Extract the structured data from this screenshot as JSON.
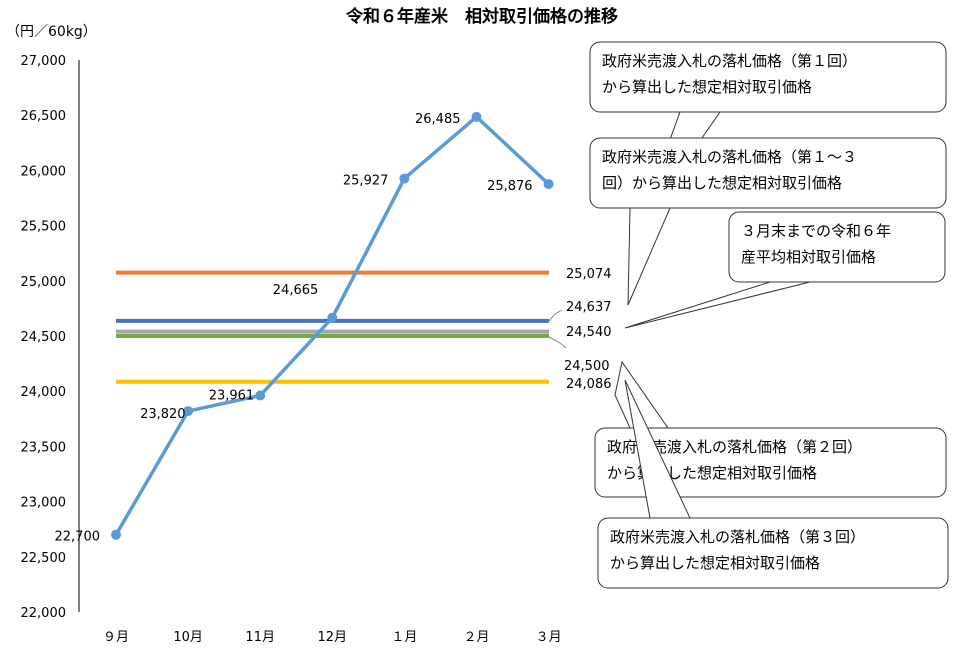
{
  "chart_data": {
    "type": "line",
    "title": "令和６年産米　相対取引価格の推移",
    "unit_label": "（円／60kg）",
    "categories": [
      "９月",
      "10月",
      "11月",
      "12月",
      "１月",
      "２月",
      "３月"
    ],
    "ylim": [
      22000,
      27000
    ],
    "yticks": [
      22000,
      22500,
      23000,
      23500,
      24000,
      24500,
      25000,
      25500,
      26000,
      26500,
      27000
    ],
    "ytick_labels": [
      "22,000",
      "22,500",
      "23,000",
      "23,500",
      "24,000",
      "24,500",
      "25,000",
      "25,500",
      "26,000",
      "26,500",
      "27,000"
    ],
    "grid": false,
    "series": [
      {
        "values": [
          22700,
          23820,
          23961,
          24665,
          25927,
          26485,
          25876
        ],
        "labels": [
          "22,700",
          "23,820",
          "23,961",
          "24,665",
          "25,927",
          "26,485",
          "25,876"
        ],
        "color": "#5b9bd5"
      }
    ],
    "reference_lines": [
      {
        "value": 25074,
        "label": "25,074",
        "color": "#ed7d31"
      },
      {
        "value": 24637,
        "label": "24,637",
        "color": "#4472c4"
      },
      {
        "value": 24540,
        "label": "24,540",
        "color": "#a5a5a5"
      },
      {
        "value": 24500,
        "label": "24,500",
        "color": "#70ad47"
      },
      {
        "value": 24086,
        "label": "24,086",
        "color": "#ffc000"
      }
    ],
    "callouts": [
      {
        "lines": [
          "政府米売渡入札の落札価格（第１回）",
          "から算出した想定相対取引価格"
        ]
      },
      {
        "lines": [
          "政府米売渡入札の落札価格（第１～３",
          "回）から算出した想定相対取引価格"
        ]
      },
      {
        "lines": [
          "３月末までの令和６年",
          "産平均相対取引価格"
        ]
      },
      {
        "lines": [
          "政府米売渡入札の落札価格（第２回）",
          "から算出した想定相対取引価格"
        ]
      },
      {
        "lines": [
          "政府米売渡入札の落札価格（第３回）",
          "から算出した想定相対取引価格"
        ]
      }
    ]
  }
}
